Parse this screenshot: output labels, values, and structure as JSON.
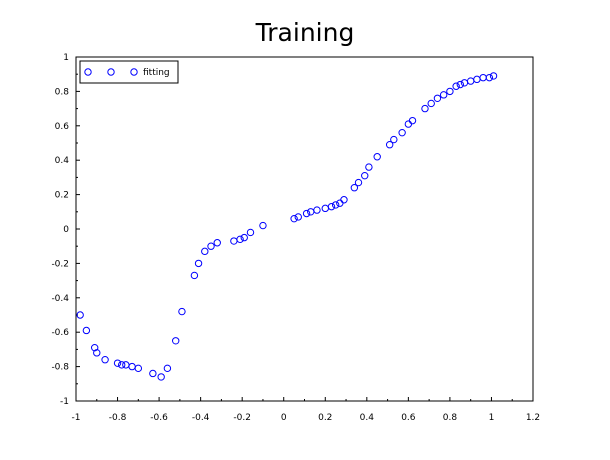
{
  "chart_data": {
    "type": "scatter",
    "title": "Training",
    "xlabel": "",
    "ylabel": "",
    "xlim": [
      -1,
      1.2
    ],
    "ylim": [
      -1,
      1
    ],
    "x_ticks": [
      "-1",
      "-0.8",
      "-0.6",
      "-0.4",
      "-0.2",
      "0",
      "0.2",
      "0.4",
      "0.6",
      "0.8",
      "1",
      "1.2"
    ],
    "y_ticks": [
      "1",
      "0.8",
      "0.6",
      "0.4",
      "0.2",
      "0",
      "-0.2",
      "-0.4",
      "-0.6",
      "-0.8",
      "-1"
    ],
    "grid": false,
    "legend": {
      "placement": "top-left",
      "entries": [
        "",
        "fitting"
      ]
    },
    "series": [
      {
        "name": "fitting",
        "color": "#0000ff",
        "marker": "circle-open",
        "points": [
          [
            -0.98,
            -0.5
          ],
          [
            -0.95,
            -0.59
          ],
          [
            -0.91,
            -0.69
          ],
          [
            -0.9,
            -0.72
          ],
          [
            -0.86,
            -0.76
          ],
          [
            -0.8,
            -0.78
          ],
          [
            -0.78,
            -0.79
          ],
          [
            -0.76,
            -0.79
          ],
          [
            -0.73,
            -0.8
          ],
          [
            -0.7,
            -0.81
          ],
          [
            -0.63,
            -0.84
          ],
          [
            -0.59,
            -0.86
          ],
          [
            -0.56,
            -0.81
          ],
          [
            -0.52,
            -0.65
          ],
          [
            -0.49,
            -0.48
          ],
          [
            -0.43,
            -0.27
          ],
          [
            -0.41,
            -0.2
          ],
          [
            -0.38,
            -0.13
          ],
          [
            -0.35,
            -0.1
          ],
          [
            -0.32,
            -0.08
          ],
          [
            -0.24,
            -0.07
          ],
          [
            -0.21,
            -0.06
          ],
          [
            -0.19,
            -0.05
          ],
          [
            -0.16,
            -0.02
          ],
          [
            -0.1,
            0.02
          ],
          [
            0.05,
            0.06
          ],
          [
            0.07,
            0.07
          ],
          [
            0.11,
            0.09
          ],
          [
            0.13,
            0.1
          ],
          [
            0.16,
            0.11
          ],
          [
            0.2,
            0.12
          ],
          [
            0.23,
            0.13
          ],
          [
            0.25,
            0.14
          ],
          [
            0.27,
            0.15
          ],
          [
            0.29,
            0.17
          ],
          [
            0.34,
            0.24
          ],
          [
            0.36,
            0.27
          ],
          [
            0.39,
            0.31
          ],
          [
            0.41,
            0.36
          ],
          [
            0.45,
            0.42
          ],
          [
            0.51,
            0.49
          ],
          [
            0.53,
            0.52
          ],
          [
            0.57,
            0.56
          ],
          [
            0.6,
            0.61
          ],
          [
            0.62,
            0.63
          ],
          [
            0.68,
            0.7
          ],
          [
            0.71,
            0.73
          ],
          [
            0.74,
            0.76
          ],
          [
            0.77,
            0.78
          ],
          [
            0.8,
            0.8
          ],
          [
            0.83,
            0.83
          ],
          [
            0.85,
            0.84
          ],
          [
            0.87,
            0.85
          ],
          [
            0.9,
            0.86
          ],
          [
            0.93,
            0.87
          ],
          [
            0.96,
            0.88
          ],
          [
            0.99,
            0.88
          ],
          [
            1.01,
            0.89
          ]
        ]
      }
    ]
  }
}
